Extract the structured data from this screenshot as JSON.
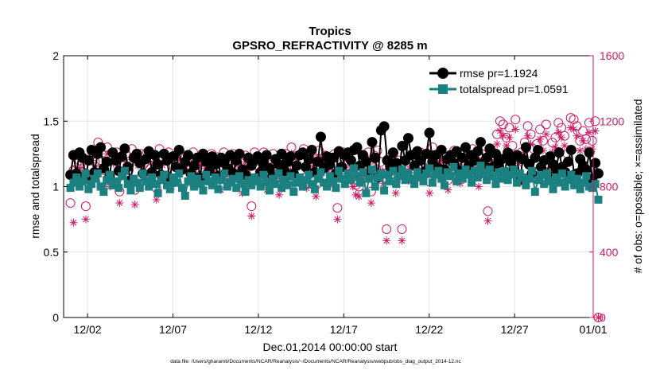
{
  "chart_data": {
    "type": "line",
    "title": "Tropics",
    "subtitle": "GPSRO_REFRACTIVITY @ 8285 m",
    "xlabel": "Dec.01,2014 00:00:00 start",
    "ylabel_left": "rmse and totalspread",
    "ylabel_right": "# of obs: o=possible; ×=assimilated",
    "footer": "data file: /Users/gharamti/Documents/NCAR/Reanalysis/~/Documents/NCAR/Reanalysis/webpub/obs_diag_output_2014-12.nc",
    "x_range": [
      0.6,
      31.6
    ],
    "ylim_left": [
      0,
      2
    ],
    "ylim_right": [
      0,
      1600
    ],
    "x_ticks": [
      {
        "x": 2,
        "label": "12/02"
      },
      {
        "x": 7,
        "label": "12/07"
      },
      {
        "x": 12,
        "label": "12/12"
      },
      {
        "x": 17,
        "label": "12/17"
      },
      {
        "x": 22,
        "label": "12/22"
      },
      {
        "x": 27,
        "label": "12/27"
      },
      {
        "x": 32,
        "label": "01/01"
      }
    ],
    "y_ticks_left": [
      "0",
      "0.5",
      "1",
      "1.5",
      "2"
    ],
    "y_ticks_left_values": [
      0,
      0.5,
      1,
      1.5,
      2
    ],
    "y_ticks_right": [
      "0",
      "400",
      "800",
      "1200",
      "1600"
    ],
    "y_ticks_right_values": [
      0,
      400,
      800,
      1200,
      1600
    ],
    "grid": true,
    "legend_position": "top-right",
    "colors": {
      "rmse": "#000000",
      "totalspread": "#1a8080",
      "obs": "#cc1a66"
    },
    "series": [
      {
        "name": "rmse pr=1.1924",
        "axis": "left",
        "marker": "circle",
        "values": [
          1.09,
          1.24,
          1.1,
          1.26,
          1.22,
          1.06,
          1.2,
          1.28,
          1.11,
          1.25,
          1.3,
          1.14,
          1.19,
          1.08,
          1.26,
          1.2,
          1.12,
          1.23,
          1.29,
          1.15,
          1.05,
          1.22,
          1.25,
          1.18,
          1.1,
          1.21,
          1.27,
          1.11,
          1.24,
          1.17,
          1.09,
          1.25,
          1.2,
          1.06,
          1.23,
          1.15,
          1.28,
          1.13,
          1.19,
          1.24,
          1.1,
          1.16,
          1.22,
          1.07,
          1.25,
          1.19,
          1.12,
          1.23,
          1.17,
          1.08,
          1.22,
          1.18,
          1.14,
          1.24,
          1.1,
          1.2,
          1.25,
          1.13,
          1.09,
          1.22,
          1.16,
          1.2,
          1.23,
          1.11,
          1.18,
          1.24,
          1.14,
          1.08,
          1.21,
          1.17,
          1.25,
          1.12,
          1.19,
          1.23,
          1.1,
          1.16,
          1.24,
          1.26,
          1.15,
          1.21,
          1.28,
          1.11,
          1.19,
          1.38,
          1.14,
          1.23,
          1.17,
          1.22,
          1.1,
          1.27,
          1.15,
          1.24,
          1.26,
          1.2,
          1.28,
          1.3,
          1.16,
          1.24,
          1.19,
          1.1,
          1.34,
          1.22,
          1.07,
          1.43,
          1.46,
          1.2,
          1.15,
          1.26,
          1.18,
          1.13,
          1.31,
          1.2,
          1.37,
          1.24,
          1.16,
          1.27,
          1.2,
          1.11,
          1.25,
          1.41,
          1.19,
          1.24,
          1.14,
          1.28,
          1.13,
          1.21,
          1.24,
          1.18,
          1.27,
          1.12,
          1.22,
          1.3,
          1.16,
          1.24,
          1.2,
          1.27,
          1.34,
          1.18,
          1.22,
          1.29,
          1.15,
          1.25,
          1.18,
          1.21,
          1.1,
          1.26,
          1.19,
          1.13,
          1.24,
          1.05,
          1.21,
          1.3,
          1.17,
          1.1,
          1.22,
          1.28,
          1.15,
          1.2,
          1.09,
          1.23,
          1.17,
          1.13,
          1.26,
          1.15,
          1.11,
          1.19,
          1.28,
          1.09,
          1.1,
          1.21,
          1.16,
          1.13,
          1.26,
          1.06,
          1.18,
          1.1
        ]
      },
      {
        "name": "totalspread pr=1.0591",
        "axis": "left",
        "marker": "square",
        "values": [
          0.99,
          1.03,
          1.07,
          1.0,
          1.04,
          1.1,
          0.98,
          1.02,
          1.06,
          1.1,
          1.0,
          0.96,
          1.05,
          1.09,
          1.01,
          1.04,
          0.99,
          1.08,
          1.12,
          1.02,
          0.97,
          1.06,
          1.03,
          0.99,
          1.1,
          1.04,
          1.0,
          1.07,
          1.02,
          0.95,
          1.05,
          1.09,
          1.01,
          0.98,
          1.07,
          1.03,
          1.1,
          0.99,
          0.93,
          1.04,
          1.08,
          1.0,
          1.06,
          1.02,
          0.97,
          1.09,
          1.04,
          1.01,
          1.07,
          0.98,
          1.05,
          1.1,
          1.0,
          1.03,
          1.06,
          0.99,
          1.08,
          1.02,
          0.96,
          1.05,
          1.01,
          1.07,
          1.04,
          1.0,
          1.09,
          1.03,
          0.97,
          1.06,
          1.02,
          1.1,
          0.99,
          1.05,
          1.01,
          1.08,
          0.96,
          1.03,
          1.07,
          1.0,
          1.05,
          1.09,
          1.02,
          0.98,
          1.06,
          1.11,
          1.03,
          1.0,
          1.08,
          1.04,
          0.99,
          1.12,
          1.06,
          1.02,
          1.1,
          1.05,
          1.14,
          1.08,
          1.03,
          1.11,
          0.95,
          1.06,
          1.13,
          1.0,
          1.07,
          1.1,
          0.97,
          1.09,
          1.04,
          1.12,
          1.02,
          1.08,
          1.13,
          1.05,
          1.1,
          1.06,
          1.02,
          1.11,
          1.07,
          1.04,
          1.1,
          1.14,
          1.03,
          1.09,
          1.12,
          1.06,
          1.01,
          1.11,
          1.08,
          1.15,
          1.04,
          1.1,
          1.06,
          1.13,
          1.09,
          1.03,
          1.12,
          1.07,
          1.16,
          1.1,
          1.05,
          1.13,
          1.08,
          1.02,
          1.11,
          1.06,
          1.12,
          1.05,
          1.09,
          1.13,
          1.03,
          1.1,
          1.07,
          1.01,
          1.06,
          1.12,
          0.96,
          1.05,
          1.09,
          1.02,
          1.1,
          1.04,
          0.98,
          1.07,
          1.03,
          1.1,
          1.0,
          1.05,
          1.09,
          1.01,
          1.06,
          0.98,
          1.03,
          1.08,
          1.0,
          0.99,
          1.02,
          0.9
        ]
      },
      {
        "name": "possible",
        "axis": "right",
        "marker": "o",
        "values": [
          700,
          900,
          940,
          960,
          890,
          680,
          920,
          1010,
          950,
          1070,
          960,
          900,
          1040,
          850,
          980,
          1010,
          770,
          930,
          1000,
          900,
          1030,
          780,
          960,
          1000,
          940,
          1010,
          910,
          980,
          790,
          1030,
          960,
          920,
          1010,
          850,
          970,
          1000,
          940,
          990,
          950,
          880,
          1010,
          930,
          970,
          1000,
          960,
          900,
          1000,
          940,
          980,
          860,
          1010,
          950,
          900,
          1000,
          970,
          910,
          830,
          990,
          950,
          680,
          1010,
          930,
          970,
          1010,
          860,
          960,
          1000,
          940,
          820,
          900,
          1000,
          950,
          1040,
          920,
          990,
          900,
          1030,
          860,
          980,
          970,
          810,
          1020,
          940,
          990,
          950,
          880,
          1000,
          670,
          960,
          1010,
          930,
          970,
          870,
          810,
          800,
          900,
          930,
          1010,
          770,
          990,
          1020,
          950,
          880,
          540,
          980,
          1010,
          830,
          960,
          540,
          1000,
          950,
          890,
          910,
          970,
          1010,
          920,
          960,
          830,
          1040,
          970,
          930,
          1000,
          950,
          840,
          980,
          1020,
          960,
          880,
          1010,
          940,
          980,
          1030,
          950,
          870,
          1000,
          960,
          650,
          1030,
          990,
          1120,
          1200,
          1180,
          1100,
          1160,
          1050,
          1210,
          990,
          1010,
          1070,
          1170,
          1120,
          1030,
          1060,
          1150,
          1080,
          1180,
          960,
          1070,
          1100,
          1190,
          1160,
          1110,
          1000,
          1220,
          1210,
          1170,
          1080,
          1140,
          1090,
          1190,
          1080,
          1200,
          0
        ]
      },
      {
        "name": "assimilated",
        "axis": "right",
        "marker": "x",
        "values": [
          800,
          580,
          890,
          910,
          820,
          600,
          870,
          960,
          910,
          1020,
          910,
          810,
          1000,
          800,
          940,
          960,
          700,
          880,
          950,
          830,
          980,
          690,
          930,
          960,
          880,
          970,
          860,
          940,
          720,
          990,
          930,
          860,
          970,
          800,
          930,
          960,
          890,
          940,
          900,
          820,
          970,
          880,
          930,
          960,
          910,
          840,
          960,
          890,
          940,
          780,
          970,
          910,
          850,
          960,
          930,
          860,
          760,
          950,
          900,
          620,
          970,
          880,
          930,
          970,
          780,
          920,
          960,
          890,
          750,
          850,
          960,
          900,
          1000,
          870,
          950,
          850,
          990,
          790,
          940,
          920,
          740,
          980,
          890,
          950,
          900,
          820,
          960,
          600,
          910,
          970,
          880,
          930,
          800,
          750,
          740,
          850,
          880,
          970,
          700,
          950,
          980,
          900,
          820,
          470,
          940,
          970,
          760,
          910,
          470,
          960,
          900,
          830,
          860,
          930,
          970,
          870,
          920,
          760,
          1000,
          930,
          880,
          960,
          900,
          780,
          940,
          980,
          920,
          820,
          970,
          890,
          930,
          990,
          900,
          800,
          960,
          910,
          590,
          990,
          950,
          1060,
          1140,
          1110,
          1050,
          1100,
          990,
          1150,
          940,
          960,
          1010,
          1110,
          1060,
          980,
          1000,
          1090,
          1020,
          1120,
          900,
          1010,
          1040,
          1130,
          1100,
          1050,
          950,
          1160,
          1150,
          1110,
          1020,
          1080,
          1030,
          1130,
          1030,
          1140,
          0
        ]
      }
    ]
  },
  "legend": {
    "rmse_label": "rmse pr=1.1924",
    "totalspread_label": "totalspread pr=1.0591"
  }
}
